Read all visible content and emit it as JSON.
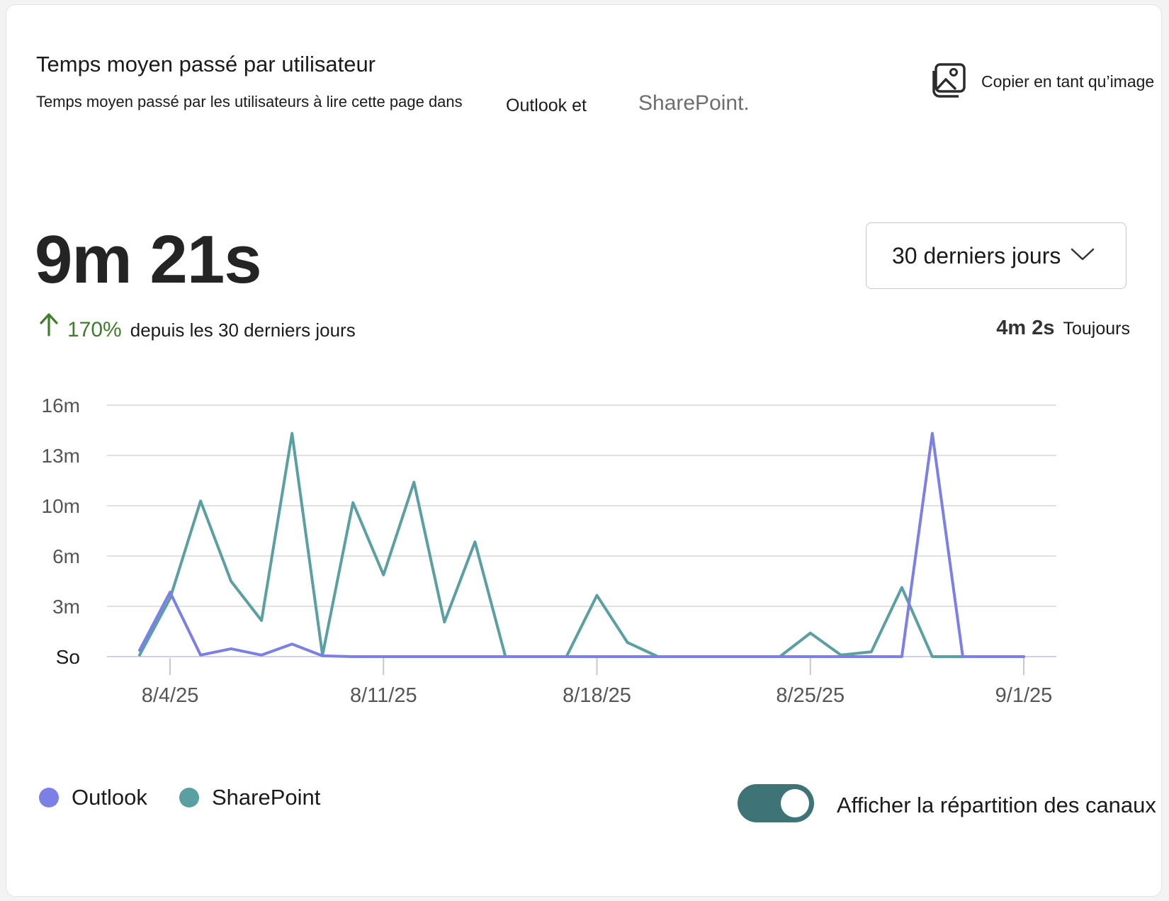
{
  "header": {
    "title": "Temps moyen passé par utilisateur",
    "subtitle": "Temps moyen passé par les utilisateurs à lire cette page dans",
    "subtitle_outlook": "Outlook et",
    "subtitle_sharepoint": "SharePoint.",
    "copy_label": "Copier en tant qu’image",
    "copy_icon": "image-icon"
  },
  "summary": {
    "value": "9m 21s",
    "trend_icon": "arrow-up-icon",
    "trend_percent": "170%",
    "trend_text": "depuis les 30 derniers jours",
    "period_select": "30 derniers jours",
    "alltime_value": "4m 2s",
    "alltime_label": "Toujours"
  },
  "legend": {
    "outlook": "Outlook",
    "sharepoint": "SharePoint"
  },
  "toggle": {
    "label": "Afficher la répartition des canaux",
    "on": true
  },
  "colors": {
    "outlook": "#7b7fe6",
    "sharepoint": "#5a9fa2",
    "toggle": "#3e7475",
    "trend": "#3f7d2b",
    "grid": "#e1e1e1"
  },
  "chart_data": {
    "type": "line",
    "y_tick_labels": [
      "So",
      "3m",
      "6m",
      "10m",
      "13m",
      "16m"
    ],
    "y_tick_values": [
      0,
      3.2,
      6.4,
      9.6,
      12.8,
      16
    ],
    "ylim": [
      0,
      16
    ],
    "x_start": "8/3/25",
    "x_tick_labels": [
      "8/4/25",
      "8/11/25",
      "8/18/25",
      "8/25/25",
      "9/1/25"
    ],
    "x_tick_dates": [
      "8/4/25",
      "8/11/25",
      "8/18/25",
      "8/25/25",
      "9/1/25"
    ],
    "x": [
      "8/3/25",
      "8/4/25",
      "8/5/25",
      "8/6/25",
      "8/7/25",
      "8/8/25",
      "8/9/25",
      "8/10/25",
      "8/11/25",
      "8/12/25",
      "8/13/25",
      "8/14/25",
      "8/15/25",
      "8/16/25",
      "8/17/25",
      "8/18/25",
      "8/19/25",
      "8/20/25",
      "8/21/25",
      "8/22/25",
      "8/23/25",
      "8/24/25",
      "8/25/25",
      "8/26/25",
      "8/27/25",
      "8/28/25",
      "8/29/25",
      "8/30/25",
      "8/31/25",
      "9/1/25"
    ],
    "series": [
      {
        "name": "Outlook",
        "values": [
          0.4,
          4.1,
          0.1,
          0.5,
          0.1,
          0.8,
          0.05,
          0,
          0,
          0,
          0,
          0,
          0,
          0,
          0,
          0,
          0,
          0,
          0,
          0,
          0,
          0,
          0,
          0,
          0,
          0,
          14.2,
          0,
          0,
          0
        ]
      },
      {
        "name": "SharePoint",
        "values": [
          0.1,
          3.7,
          9.9,
          4.8,
          2.3,
          14.2,
          0.1,
          9.8,
          5.2,
          11.1,
          2.2,
          7.3,
          0,
          0,
          0,
          3.9,
          0.9,
          0,
          0,
          0,
          0,
          0,
          1.5,
          0.1,
          0.3,
          4.4,
          0,
          0,
          0,
          0
        ]
      }
    ]
  }
}
